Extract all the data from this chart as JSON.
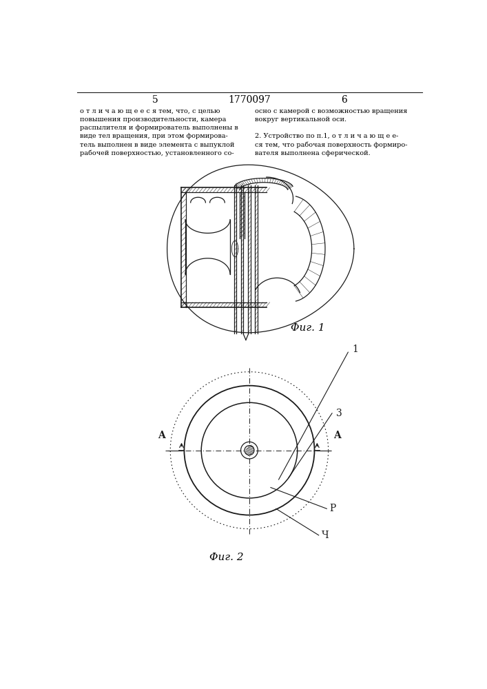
{
  "page_number_left": "5",
  "patent_number": "1770097",
  "page_number_right": "6",
  "text_left": "о т л и ч а ю щ е е с я тем, что, с целью\nповышения производительности, камера\nраспылителя и формирователь выполнены в\nвиде тел вращения, при этом формирова-\nтель выполнен в виде элемента с выпуклой\nрабочей поверхностью, установленного со-",
  "text_right": "осно с камерой с возможностью вращения\nвокруг вертикальной оси.\n\n2. Устройство по п.1, о т л и ч а ю щ е е-\nся тем, что рабочая поверхность формиро-\nвателя выполнена сферической.",
  "fig1_label": "Φиг. 1",
  "fig2_label": "Φиг. 2",
  "label_1": "1",
  "label_3": "3",
  "label_P": "P",
  "label_4": "Ч",
  "label_A_left": "A",
  "label_A_right": "A",
  "bg_color": "#ffffff",
  "line_color": "#1a1a1a",
  "text_color": "#000000"
}
